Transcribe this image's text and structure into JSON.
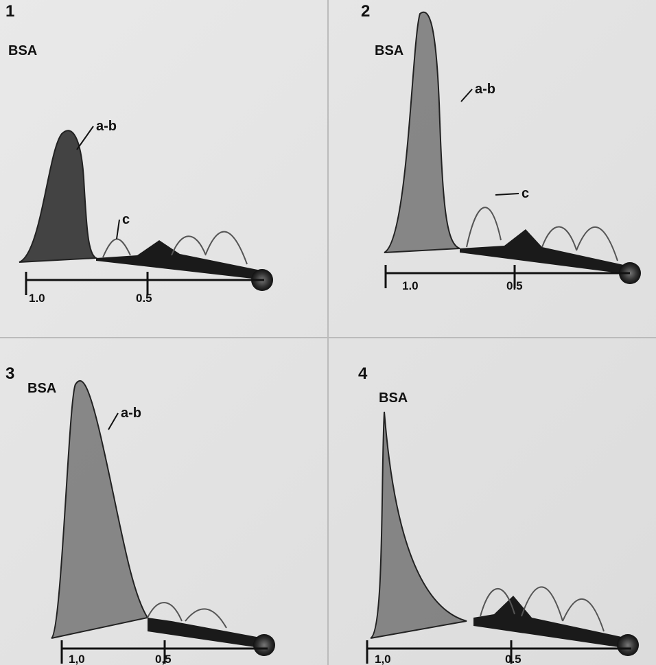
{
  "panels": [
    {
      "number": "1",
      "antigen": "BSA",
      "annotations": [
        "a-b",
        "c"
      ],
      "scale_labels": [
        "1.0",
        "0.5"
      ]
    },
    {
      "number": "2",
      "antigen": "BSA",
      "annotations": [
        "a-b",
        "c"
      ],
      "scale_labels": [
        "1.0",
        "0.5"
      ]
    },
    {
      "number": "3",
      "antigen": "BSA",
      "annotations": [
        "a-b"
      ],
      "scale_labels": [
        "1,0",
        "0,5"
      ]
    },
    {
      "number": "4",
      "antigen": "BSA",
      "annotations": [],
      "scale_labels": [
        "1,0",
        "0.5"
      ]
    }
  ]
}
